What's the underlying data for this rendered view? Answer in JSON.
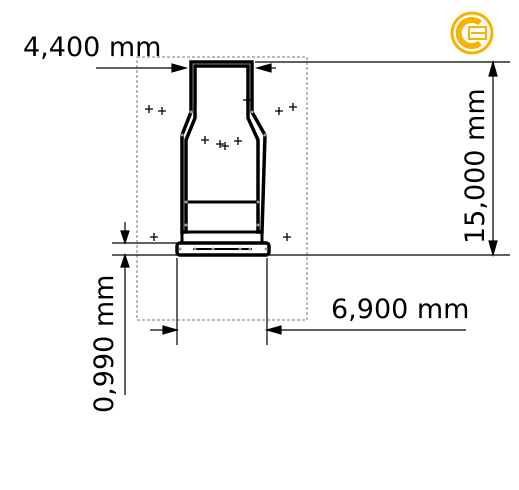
{
  "dimensions": {
    "top_width": "4,400 mm",
    "height": "15,000 mm",
    "bottom_width": "6,900 mm",
    "flange_thickness": "0,990 mm"
  },
  "logo": {
    "name": "brand-logo-icon",
    "color": "#f5b400"
  },
  "colors": {
    "line": "#000000",
    "guide": "#6b6b6b"
  }
}
